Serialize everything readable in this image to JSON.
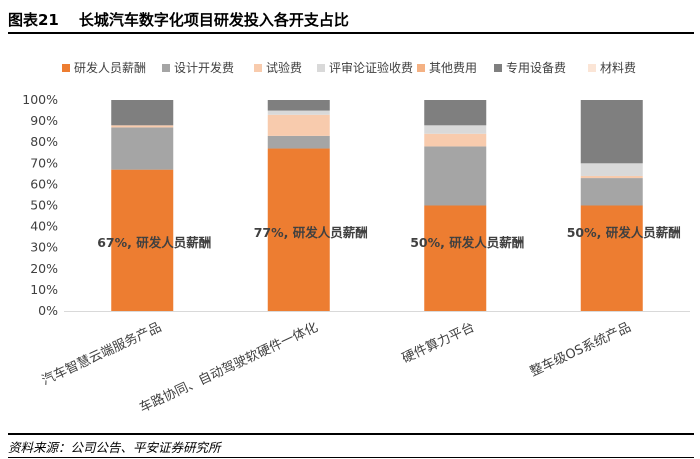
{
  "header": {
    "figure_number": "图表21",
    "title": "长城汽车数字化项目研发投入各开支占比"
  },
  "footer": {
    "source": "资料来源：公司公告、平安证券研究所"
  },
  "chart_data": {
    "type": "bar",
    "stacked": true,
    "categories": [
      "汽车智慧云端服务产品",
      "车路协同、自动驾驶软硬件一体化",
      "硬件算力平台",
      "整车级OS系统产品"
    ],
    "series": [
      {
        "name": "研发人员薪酬",
        "color": "#ED7D31",
        "values": [
          67,
          77,
          50,
          50
        ]
      },
      {
        "name": "设计开发费",
        "color": "#A5A5A5",
        "values": [
          20,
          6,
          28,
          13
        ]
      },
      {
        "name": "试验费",
        "color": "#F8CBAD",
        "values": [
          1,
          10,
          6,
          1
        ]
      },
      {
        "name": "评审论证验收费",
        "color": "#D9D9D9",
        "values": [
          0,
          2,
          4,
          6
        ]
      },
      {
        "name": "其他费用",
        "color": "#F4B183",
        "values": [
          0,
          0,
          0,
          0
        ]
      },
      {
        "name": "专用设备费",
        "color": "#7F7F7F",
        "values": [
          12,
          5,
          12,
          30
        ]
      },
      {
        "name": "材料费",
        "color": "#FBE5D6",
        "values": [
          0,
          0,
          0,
          0
        ]
      }
    ],
    "annotations": [
      "67%, 研发人员薪酬",
      "77%, 研发人员薪酬",
      "50%, 研发人员薪酬",
      "50%, 研发人员薪酬"
    ],
    "y_ticks": [
      "0%",
      "10%",
      "20%",
      "30%",
      "40%",
      "50%",
      "60%",
      "70%",
      "80%",
      "90%",
      "100%"
    ],
    "ylim": [
      0,
      100
    ],
    "legend": "top",
    "grid": false
  }
}
